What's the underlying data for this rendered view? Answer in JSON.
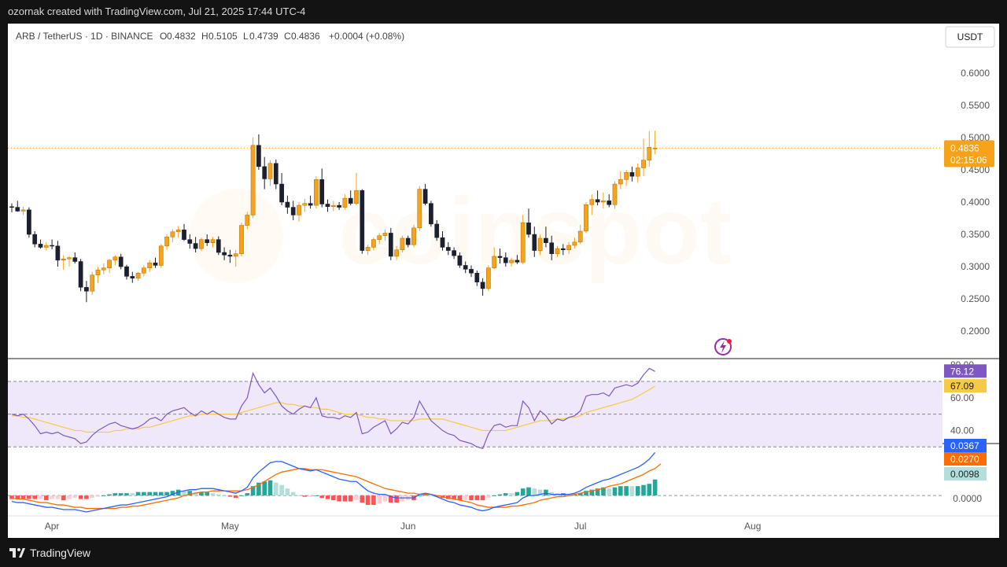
{
  "header": {
    "caption": "ozornak created with TradingView.com, Jul 21, 2025 17:44 UTC-4"
  },
  "footer": {
    "brand": "TradingView"
  },
  "legend": {
    "symbol": "ARB / TetherUS · 1D · BINANCE",
    "o_label": "O",
    "o_value": "0.4832",
    "h_label": "H",
    "h_value": "0.5105",
    "l_label": "L",
    "l_value": "0.4739",
    "c_label": "C",
    "c_value": "0.4836",
    "change": "+0.0004 (+0.08%)"
  },
  "currency_button": "USDT",
  "watermark": "coinspot",
  "colors": {
    "up": "#f7a21b",
    "down": "#1b1f2e",
    "price_label": "#f7a21b",
    "rsi_line": "#7e57c2",
    "rsi_ma": "#f7c948",
    "rsi_band": "#efe8fb",
    "macd_line": "#2962ff",
    "signal_line": "#ff6d00",
    "hist_pos_strong": "#26a69a",
    "hist_pos_weak": "#b2dfdb",
    "hist_neg_strong": "#ff5252",
    "hist_neg_weak": "#ffcdd2"
  },
  "chart_data": [
    {
      "type": "candlestick",
      "panel": "price",
      "ylim": [
        0.16,
        0.64
      ],
      "yticks": [
        "0.6000",
        "0.5500",
        "0.5000",
        "0.4500",
        "0.4000",
        "0.3500",
        "0.3000",
        "0.2500",
        "0.2000"
      ],
      "ytick_values": [
        0.6,
        0.55,
        0.5,
        0.45,
        0.4,
        0.35,
        0.3,
        0.25,
        0.2
      ],
      "x_labels": [
        "Apr",
        "May",
        "Jun",
        "Jul",
        "Aug"
      ],
      "last_price": "0.4836",
      "last_price_value": 0.4836,
      "countdown": "02:15:06",
      "candles": [
        [
          0.393,
          0.398,
          0.384,
          0.392
        ],
        [
          0.392,
          0.402,
          0.385,
          0.386
        ],
        [
          0.386,
          0.393,
          0.38,
          0.388
        ],
        [
          0.388,
          0.392,
          0.345,
          0.35
        ],
        [
          0.35,
          0.355,
          0.33,
          0.335
        ],
        [
          0.335,
          0.342,
          0.328,
          0.33
        ],
        [
          0.33,
          0.338,
          0.325,
          0.333
        ],
        [
          0.333,
          0.342,
          0.327,
          0.332
        ],
        [
          0.332,
          0.34,
          0.3,
          0.31
        ],
        [
          0.31,
          0.318,
          0.295,
          0.312
        ],
        [
          0.312,
          0.316,
          0.3,
          0.314
        ],
        [
          0.314,
          0.322,
          0.305,
          0.308
        ],
        [
          0.308,
          0.312,
          0.262,
          0.268
        ],
        [
          0.268,
          0.278,
          0.245,
          0.262
        ],
        [
          0.262,
          0.292,
          0.256,
          0.287
        ],
        [
          0.287,
          0.3,
          0.275,
          0.295
        ],
        [
          0.295,
          0.305,
          0.288,
          0.298
        ],
        [
          0.298,
          0.312,
          0.29,
          0.31
        ],
        [
          0.31,
          0.318,
          0.302,
          0.315
        ],
        [
          0.315,
          0.32,
          0.296,
          0.3
        ],
        [
          0.3,
          0.303,
          0.28,
          0.285
        ],
        [
          0.285,
          0.292,
          0.275,
          0.282
        ],
        [
          0.282,
          0.292,
          0.278,
          0.29
        ],
        [
          0.29,
          0.302,
          0.285,
          0.298
        ],
        [
          0.298,
          0.31,
          0.292,
          0.306
        ],
        [
          0.306,
          0.314,
          0.298,
          0.302
        ],
        [
          0.302,
          0.335,
          0.298,
          0.332
        ],
        [
          0.332,
          0.35,
          0.326,
          0.346
        ],
        [
          0.346,
          0.358,
          0.338,
          0.354
        ],
        [
          0.354,
          0.363,
          0.345,
          0.357
        ],
        [
          0.357,
          0.366,
          0.34,
          0.342
        ],
        [
          0.342,
          0.35,
          0.328,
          0.336
        ],
        [
          0.336,
          0.346,
          0.322,
          0.328
        ],
        [
          0.328,
          0.345,
          0.324,
          0.342
        ],
        [
          0.342,
          0.35,
          0.332,
          0.337
        ],
        [
          0.337,
          0.346,
          0.33,
          0.342
        ],
        [
          0.342,
          0.347,
          0.318,
          0.322
        ],
        [
          0.322,
          0.33,
          0.31,
          0.318
        ],
        [
          0.318,
          0.326,
          0.306,
          0.316
        ],
        [
          0.316,
          0.326,
          0.3,
          0.32
        ],
        [
          0.32,
          0.368,
          0.316,
          0.364
        ],
        [
          0.364,
          0.385,
          0.358,
          0.38
        ],
        [
          0.38,
          0.5,
          0.375,
          0.488
        ],
        [
          0.488,
          0.505,
          0.45,
          0.455
        ],
        [
          0.455,
          0.47,
          0.42,
          0.436
        ],
        [
          0.436,
          0.465,
          0.425,
          0.46
        ],
        [
          0.46,
          0.466,
          0.42,
          0.428
        ],
        [
          0.428,
          0.445,
          0.395,
          0.4
        ],
        [
          0.4,
          0.41,
          0.382,
          0.392
        ],
        [
          0.392,
          0.402,
          0.372,
          0.38
        ],
        [
          0.38,
          0.4,
          0.37,
          0.395
        ],
        [
          0.395,
          0.405,
          0.385,
          0.398
        ],
        [
          0.398,
          0.41,
          0.39,
          0.395
        ],
        [
          0.395,
          0.44,
          0.39,
          0.435
        ],
        [
          0.435,
          0.452,
          0.392,
          0.397
        ],
        [
          0.397,
          0.404,
          0.385,
          0.393
        ],
        [
          0.393,
          0.402,
          0.386,
          0.395
        ],
        [
          0.395,
          0.4,
          0.388,
          0.392
        ],
        [
          0.392,
          0.412,
          0.388,
          0.406
        ],
        [
          0.406,
          0.418,
          0.395,
          0.398
        ],
        [
          0.398,
          0.445,
          0.395,
          0.418
        ],
        [
          0.418,
          0.42,
          0.32,
          0.325
        ],
        [
          0.325,
          0.334,
          0.318,
          0.33
        ],
        [
          0.33,
          0.345,
          0.325,
          0.342
        ],
        [
          0.342,
          0.352,
          0.335,
          0.348
        ],
        [
          0.348,
          0.358,
          0.34,
          0.352
        ],
        [
          0.352,
          0.36,
          0.31,
          0.316
        ],
        [
          0.316,
          0.332,
          0.31,
          0.326
        ],
        [
          0.326,
          0.348,
          0.322,
          0.344
        ],
        [
          0.344,
          0.348,
          0.33,
          0.334
        ],
        [
          0.334,
          0.365,
          0.33,
          0.36
        ],
        [
          0.36,
          0.425,
          0.355,
          0.42
        ],
        [
          0.42,
          0.428,
          0.395,
          0.398
        ],
        [
          0.398,
          0.402,
          0.362,
          0.366
        ],
        [
          0.366,
          0.372,
          0.34,
          0.345
        ],
        [
          0.345,
          0.355,
          0.325,
          0.33
        ],
        [
          0.33,
          0.338,
          0.318,
          0.325
        ],
        [
          0.325,
          0.33,
          0.312,
          0.317
        ],
        [
          0.317,
          0.322,
          0.298,
          0.302
        ],
        [
          0.302,
          0.308,
          0.29,
          0.296
        ],
        [
          0.296,
          0.302,
          0.284,
          0.29
        ],
        [
          0.29,
          0.294,
          0.27,
          0.276
        ],
        [
          0.276,
          0.282,
          0.255,
          0.266
        ],
        [
          0.266,
          0.302,
          0.262,
          0.298
        ],
        [
          0.298,
          0.33,
          0.296,
          0.316
        ],
        [
          0.316,
          0.328,
          0.305,
          0.314
        ],
        [
          0.314,
          0.322,
          0.3,
          0.306
        ],
        [
          0.306,
          0.314,
          0.3,
          0.31
        ],
        [
          0.31,
          0.318,
          0.304,
          0.307
        ],
        [
          0.307,
          0.38,
          0.304,
          0.368
        ],
        [
          0.368,
          0.39,
          0.345,
          0.35
        ],
        [
          0.35,
          0.362,
          0.315,
          0.325
        ],
        [
          0.325,
          0.35,
          0.318,
          0.344
        ],
        [
          0.344,
          0.362,
          0.33,
          0.337
        ],
        [
          0.337,
          0.348,
          0.31,
          0.32
        ],
        [
          0.32,
          0.332,
          0.315,
          0.328
        ],
        [
          0.328,
          0.335,
          0.318,
          0.326
        ],
        [
          0.326,
          0.338,
          0.32,
          0.333
        ],
        [
          0.333,
          0.345,
          0.328,
          0.338
        ],
        [
          0.338,
          0.365,
          0.335,
          0.355
        ],
        [
          0.355,
          0.4,
          0.352,
          0.396
        ],
        [
          0.396,
          0.412,
          0.38,
          0.404
        ],
        [
          0.404,
          0.418,
          0.395,
          0.4
        ],
        [
          0.4,
          0.415,
          0.39,
          0.402
        ],
        [
          0.402,
          0.412,
          0.392,
          0.396
        ],
        [
          0.396,
          0.432,
          0.39,
          0.428
        ],
        [
          0.428,
          0.448,
          0.42,
          0.435
        ],
        [
          0.435,
          0.45,
          0.425,
          0.446
        ],
        [
          0.446,
          0.455,
          0.432,
          0.44
        ],
        [
          0.44,
          0.46,
          0.43,
          0.453
        ],
        [
          0.453,
          0.498,
          0.44,
          0.465
        ],
        [
          0.465,
          0.51,
          0.455,
          0.485
        ],
        [
          0.4832,
          0.5105,
          0.4739,
          0.4836
        ]
      ]
    },
    {
      "type": "line",
      "panel": "rsi",
      "ylim": [
        33,
        83
      ],
      "yticks": [
        "80.00",
        "60.00",
        "40.00"
      ],
      "ytick_values": [
        80,
        60,
        40
      ],
      "band": [
        30,
        70
      ],
      "midline": 50,
      "rsi_last": "76.12",
      "ma_last": "67.09",
      "rsi": [
        50,
        49,
        50,
        47,
        43,
        38,
        39,
        38,
        39,
        37,
        36,
        35,
        32,
        33,
        37,
        40,
        42,
        44,
        45,
        43,
        42,
        41,
        42,
        44,
        47,
        48,
        46,
        50,
        52,
        53,
        54,
        51,
        49,
        52,
        50,
        52,
        50,
        48,
        47,
        47,
        55,
        60,
        75,
        68,
        63,
        66,
        61,
        55,
        52,
        50,
        53,
        55,
        54,
        60,
        49,
        48,
        48,
        47,
        49,
        48,
        51,
        38,
        39,
        42,
        44,
        46,
        38,
        41,
        45,
        44,
        48,
        58,
        52,
        46,
        43,
        40,
        38,
        37,
        34,
        33,
        32,
        30,
        29,
        38,
        43,
        44,
        42,
        43,
        43,
        58,
        54,
        46,
        52,
        49,
        44,
        47,
        46,
        48,
        49,
        52,
        61,
        62,
        62,
        63,
        61,
        66,
        67,
        68,
        67,
        69,
        74,
        78,
        76.12
      ],
      "rsi_ma": [
        49,
        49,
        48,
        48,
        47,
        46,
        45,
        44,
        43,
        42,
        41,
        40,
        40,
        39,
        39,
        39,
        39,
        39,
        40,
        40,
        41,
        41,
        41,
        42,
        42,
        43,
        44,
        45,
        46,
        47,
        48,
        49,
        49,
        50,
        50,
        50,
        50,
        50,
        50,
        50,
        51,
        52,
        53,
        54,
        55,
        56,
        57,
        57,
        56,
        56,
        55,
        55,
        54,
        54,
        53,
        53,
        52,
        51,
        50,
        50,
        50,
        49,
        48,
        48,
        47,
        47,
        46,
        46,
        46,
        46,
        46,
        47,
        47,
        47,
        47,
        47,
        46,
        45,
        44,
        43,
        42,
        41,
        40,
        40,
        40,
        40,
        40,
        41,
        42,
        43,
        44,
        45,
        46,
        46,
        46,
        47,
        47,
        48,
        48,
        49,
        51,
        52,
        53,
        54,
        55,
        56,
        57,
        58,
        59,
        61,
        63,
        65,
        67.09
      ]
    },
    {
      "type": "line+bar",
      "panel": "macd",
      "ylim": [
        -0.016,
        0.043
      ],
      "yticks": [
        "0.0000"
      ],
      "ytick_values": [
        0
      ],
      "macd_last": "0.0367",
      "signal_last": "0.0270",
      "hist_last": "0.0098",
      "macd": [
        -0.005,
        -0.006,
        -0.006,
        -0.007,
        -0.008,
        -0.009,
        -0.01,
        -0.01,
        -0.011,
        -0.012,
        -0.012,
        -0.012,
        -0.013,
        -0.014,
        -0.013,
        -0.012,
        -0.011,
        -0.01,
        -0.009,
        -0.008,
        -0.008,
        -0.007,
        -0.006,
        -0.005,
        -0.004,
        -0.003,
        -0.002,
        -0.001,
        0.001,
        0.003,
        0.004,
        0.005,
        0.005,
        0.006,
        0.006,
        0.006,
        0.005,
        0.004,
        0.003,
        0.002,
        0.004,
        0.007,
        0.015,
        0.02,
        0.024,
        0.028,
        0.029,
        0.029,
        0.027,
        0.025,
        0.023,
        0.022,
        0.021,
        0.022,
        0.02,
        0.018,
        0.016,
        0.014,
        0.013,
        0.012,
        0.012,
        0.008,
        0.004,
        0.002,
        0.001,
        0.001,
        -0.001,
        -0.002,
        -0.002,
        -0.002,
        -0.002,
        0.001,
        0.002,
        0.001,
        -0.001,
        -0.003,
        -0.005,
        -0.006,
        -0.008,
        -0.009,
        -0.01,
        -0.012,
        -0.013,
        -0.012,
        -0.01,
        -0.009,
        -0.008,
        -0.007,
        -0.006,
        -0.002,
        0.0,
        0.0,
        0.001,
        0.002,
        0.001,
        0.001,
        0.001,
        0.001,
        0.002,
        0.004,
        0.007,
        0.009,
        0.011,
        0.013,
        0.014,
        0.016,
        0.018,
        0.02,
        0.022,
        0.024,
        0.027,
        0.031,
        0.0367
      ],
      "signal": [
        -0.002,
        -0.003,
        -0.003,
        -0.004,
        -0.005,
        -0.006,
        -0.006,
        -0.007,
        -0.008,
        -0.008,
        -0.009,
        -0.01,
        -0.01,
        -0.011,
        -0.011,
        -0.011,
        -0.011,
        -0.011,
        -0.011,
        -0.01,
        -0.01,
        -0.009,
        -0.009,
        -0.008,
        -0.007,
        -0.006,
        -0.005,
        -0.004,
        -0.003,
        -0.002,
        0.0,
        0.001,
        0.002,
        0.003,
        0.003,
        0.004,
        0.004,
        0.004,
        0.004,
        0.004,
        0.004,
        0.005,
        0.007,
        0.009,
        0.012,
        0.015,
        0.018,
        0.02,
        0.021,
        0.022,
        0.023,
        0.023,
        0.022,
        0.022,
        0.022,
        0.021,
        0.02,
        0.019,
        0.018,
        0.017,
        0.016,
        0.014,
        0.012,
        0.01,
        0.008,
        0.006,
        0.005,
        0.004,
        0.003,
        0.002,
        0.002,
        0.001,
        0.001,
        0.001,
        0.0,
        -0.001,
        -0.002,
        -0.003,
        -0.004,
        -0.005,
        -0.006,
        -0.008,
        -0.009,
        -0.01,
        -0.01,
        -0.01,
        -0.01,
        -0.009,
        -0.009,
        -0.008,
        -0.007,
        -0.006,
        -0.004,
        -0.003,
        -0.002,
        -0.001,
        -0.001,
        0.0,
        0.001,
        0.002,
        0.003,
        0.004,
        0.005,
        0.006,
        0.008,
        0.009,
        0.01,
        0.012,
        0.014,
        0.016,
        0.018,
        0.021,
        0.023,
        0.027
      ]
    }
  ]
}
